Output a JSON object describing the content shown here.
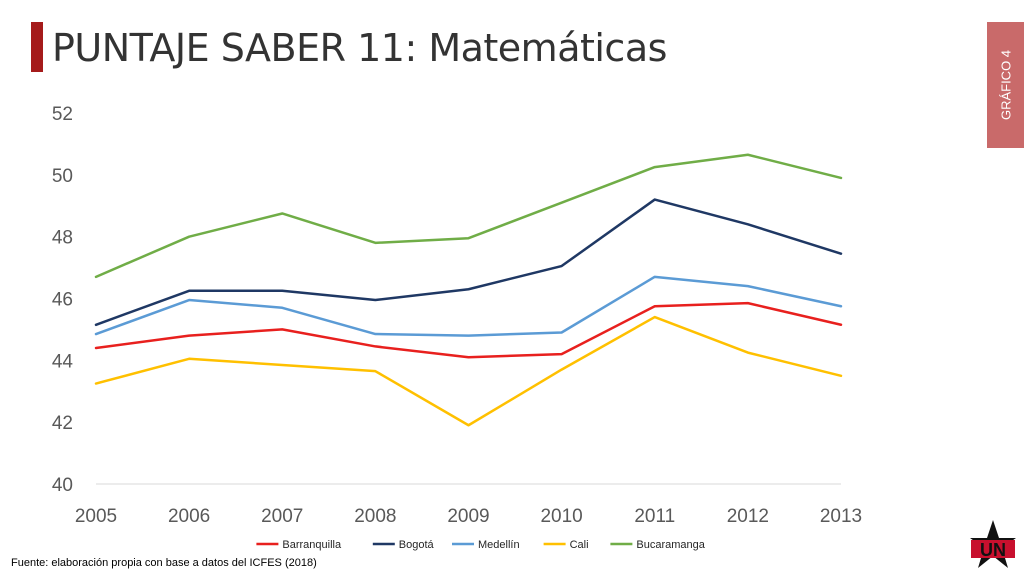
{
  "header": {
    "title": "PUNTAJE SABER 11: Matemáticas",
    "side_label": "GRÁFICO 4"
  },
  "footer": {
    "source": "Fuente: elaboración propia con base a datos del ICFES (2018)",
    "logo_text": "UN"
  },
  "colors": {
    "accent": "#a51b1b",
    "side_tab": "#c96a6a"
  },
  "chart_data": {
    "type": "line",
    "x": [
      "2005",
      "2006",
      "2007",
      "2008",
      "2009",
      "2010",
      "2011",
      "2012",
      "2013"
    ],
    "ylim": [
      40,
      52
    ],
    "yticks": [
      40,
      42,
      44,
      46,
      48,
      50,
      52
    ],
    "grid": false,
    "legend_position": "bottom",
    "series": [
      {
        "name": "Barranquilla",
        "color": "#e8201e",
        "values": [
          44.4,
          44.8,
          45.0,
          44.45,
          44.1,
          44.2,
          45.75,
          45.85,
          45.15
        ]
      },
      {
        "name": "Bogotá",
        "color": "#1f3864",
        "values": [
          45.15,
          46.25,
          46.25,
          45.95,
          46.3,
          47.05,
          49.2,
          48.4,
          47.45
        ]
      },
      {
        "name": "Medellín",
        "color": "#5b9bd5",
        "values": [
          44.85,
          45.95,
          45.7,
          44.85,
          44.8,
          44.9,
          46.7,
          46.4,
          45.75
        ]
      },
      {
        "name": "Cali",
        "color": "#ffc000",
        "values": [
          43.25,
          44.05,
          43.85,
          43.65,
          41.9,
          43.7,
          45.4,
          44.25,
          43.5
        ]
      },
      {
        "name": "Bucaramanga",
        "color": "#70ad47",
        "values": [
          46.7,
          48.0,
          48.75,
          47.8,
          47.95,
          49.1,
          50.25,
          50.65,
          49.9
        ]
      }
    ]
  }
}
